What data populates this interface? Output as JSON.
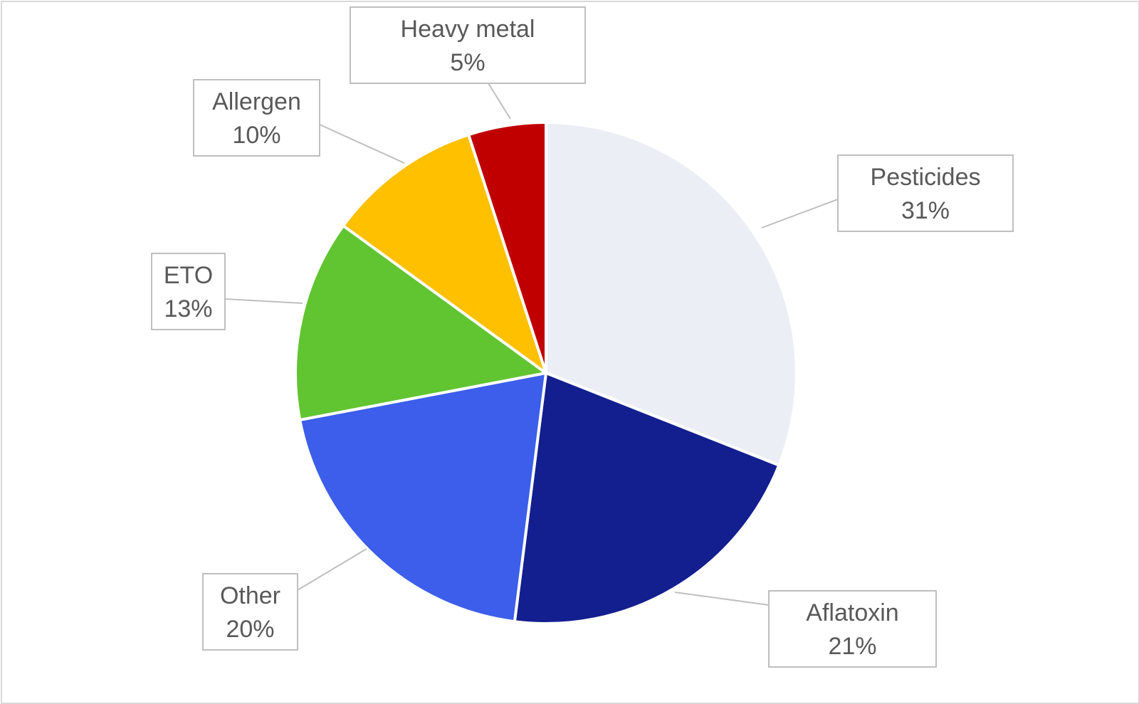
{
  "chart_data": {
    "type": "pie",
    "title": "",
    "start_angle_deg": 0,
    "direction": "clockwise",
    "legend": "none",
    "slices": [
      {
        "name": "Pesticides",
        "value": 31,
        "label": "31%",
        "color": "#ebeff5"
      },
      {
        "name": "Aflatoxin",
        "value": 21,
        "label": "21%",
        "color": "#131e8f"
      },
      {
        "name": "Other",
        "value": 20,
        "label": "20%",
        "color": "#3c5eea"
      },
      {
        "name": "ETO",
        "value": 13,
        "label": "13%",
        "color": "#61c431"
      },
      {
        "name": "Allergen",
        "value": 10,
        "label": "10%",
        "color": "#ffc000"
      },
      {
        "name": "Heavy metal",
        "value": 5,
        "label": "5%",
        "color": "#c00000"
      }
    ]
  }
}
